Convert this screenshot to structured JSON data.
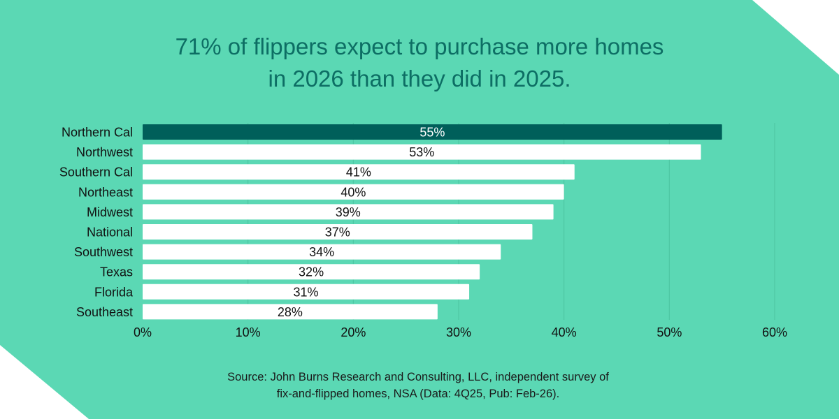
{
  "colors": {
    "background": "#5BD8B4",
    "highlight": "#005F5A",
    "bar": "#FFFFFF",
    "title": "#0D6E64",
    "grid": "#4CC4A0"
  },
  "title_lines": [
    "71% of flippers expect to purchase more homes",
    "in 2026 than they did in 2025."
  ],
  "source_lines": [
    "Source: John Burns Research and Consulting, LLC, independent survey of",
    "fix-and-flipped homes, NSA (Data: 4Q25, Pub: Feb-26)."
  ],
  "chart_data": {
    "type": "bar",
    "orientation": "horizontal",
    "title": "71% of flippers expect to purchase more homes in 2026 than they did in 2025.",
    "categories": [
      "Northern Cal",
      "Northwest",
      "Southern Cal",
      "Northeast",
      "Midwest",
      "National",
      "Southwest",
      "Texas",
      "Florida",
      "Southeast"
    ],
    "values": [
      55,
      53,
      41,
      40,
      39,
      37,
      34,
      32,
      31,
      28
    ],
    "data_labels": [
      "55%",
      "53%",
      "41%",
      "40%",
      "39%",
      "37%",
      "34%",
      "32%",
      "31%",
      "28%"
    ],
    "highlighted": "Northern Cal",
    "xlim": [
      0,
      60
    ],
    "xticks": [
      0,
      10,
      20,
      30,
      40,
      50,
      60
    ],
    "xtick_labels": [
      "0%",
      "10%",
      "20%",
      "30%",
      "40%",
      "50%",
      "60%"
    ],
    "grid": "vertical",
    "xlabel": "",
    "ylabel": ""
  }
}
